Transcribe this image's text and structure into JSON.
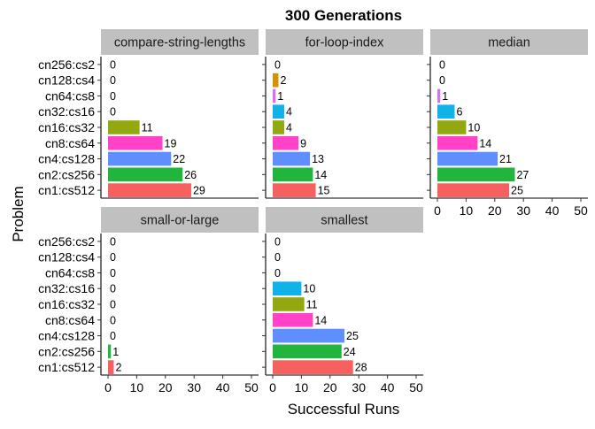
{
  "chart_data": {
    "type": "bar",
    "orientation": "horizontal",
    "title": "300 Generations",
    "xlabel": "Successful Runs",
    "ylabel": "Problem",
    "xlim": [
      0,
      50
    ],
    "x_ticks": [
      0,
      10,
      20,
      30,
      40,
      50
    ],
    "grid": false,
    "legend": "none",
    "categories": [
      "cn256:cs2",
      "cn128:cs4",
      "cn64:cs8",
      "cn32:cs16",
      "cn16:cs32",
      "cn8:cs64",
      "cn4:cs128",
      "cn2:cs256",
      "cn1:cs512"
    ],
    "category_colors": [
      "#F564E3",
      "#B79F00",
      "#E76BF3",
      "#00B0F6",
      "#7CAE00",
      "#FF3FC9",
      "#619CFF",
      "#00BA38",
      "#F8766D"
    ],
    "bar_colors": {
      "cn256:cs2": "#DB72FB",
      "cn128:cs4": "#D39200",
      "cn64:cs8": "#D570F5",
      "cn32:cs16": "#11B2E8",
      "cn16:cs32": "#93A810",
      "cn8:cs64": "#FF42C8",
      "cn4:cs128": "#5F8EFF",
      "cn2:cs256": "#21B53E",
      "cn1:cs512": "#F8605F"
    },
    "panels": [
      {
        "name": "compare-string-lengths",
        "values": [
          0,
          0,
          0,
          0,
          11,
          19,
          22,
          26,
          29
        ]
      },
      {
        "name": "for-loop-index",
        "values": [
          0,
          2,
          1,
          4,
          4,
          9,
          13,
          14,
          15
        ]
      },
      {
        "name": "median",
        "values": [
          0,
          0,
          1,
          6,
          10,
          14,
          21,
          27,
          25
        ]
      },
      {
        "name": "small-or-large",
        "values": [
          0,
          0,
          0,
          0,
          0,
          0,
          0,
          1,
          2
        ]
      },
      {
        "name": "smallest",
        "values": [
          0,
          0,
          0,
          10,
          11,
          14,
          25,
          24,
          28
        ]
      }
    ]
  }
}
